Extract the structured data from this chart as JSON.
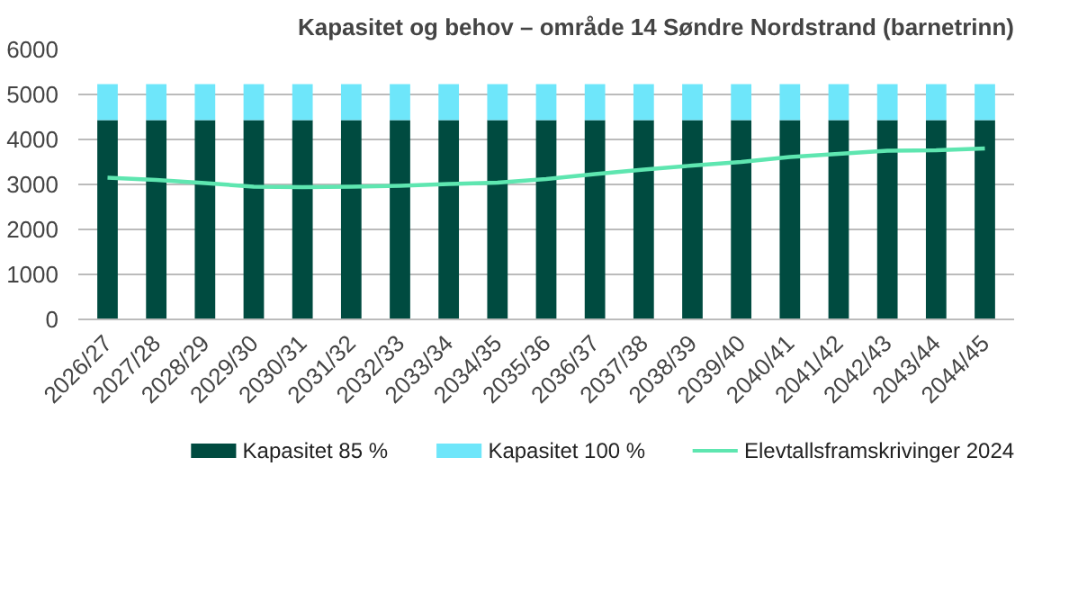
{
  "chart_data": {
    "type": "bar",
    "title": "Kapasitet og behov – område 14 Søndre Nordstrand (barnetrinn)",
    "categories": [
      "2026/27",
      "2027/28",
      "2028/29",
      "2029/30",
      "2030/31",
      "2031/32",
      "2032/33",
      "2033/34",
      "2034/35",
      "2035/36",
      "2036/37",
      "2037/38",
      "2038/39",
      "2039/40",
      "2040/41",
      "2041/42",
      "2042/43",
      "2043/44",
      "2044/45"
    ],
    "stacked": true,
    "series": [
      {
        "name": "Kapasitet 85 %",
        "color": "#004b40",
        "values": [
          4430,
          4430,
          4430,
          4430,
          4430,
          4430,
          4430,
          4430,
          4430,
          4430,
          4430,
          4430,
          4430,
          4430,
          4430,
          4430,
          4430,
          4430,
          4430
        ]
      },
      {
        "name": "Kapasitet 100 %",
        "color": "#6ee6fa",
        "values": [
          800,
          800,
          800,
          800,
          800,
          800,
          800,
          800,
          800,
          800,
          800,
          800,
          800,
          800,
          800,
          800,
          800,
          800,
          800
        ]
      },
      {
        "name": "Elevtallsframskrivinger 2024",
        "type": "line",
        "color": "#5ee6b0",
        "values": [
          3150,
          3100,
          3030,
          2950,
          2940,
          2950,
          2970,
          3010,
          3040,
          3120,
          3230,
          3330,
          3420,
          3500,
          3610,
          3680,
          3750,
          3760,
          3800
        ]
      }
    ],
    "ylim": [
      0,
      6000
    ],
    "yticks": [
      0,
      1000,
      2000,
      3000,
      4000,
      5000,
      6000
    ],
    "grid": "y",
    "legend": "bottom"
  }
}
